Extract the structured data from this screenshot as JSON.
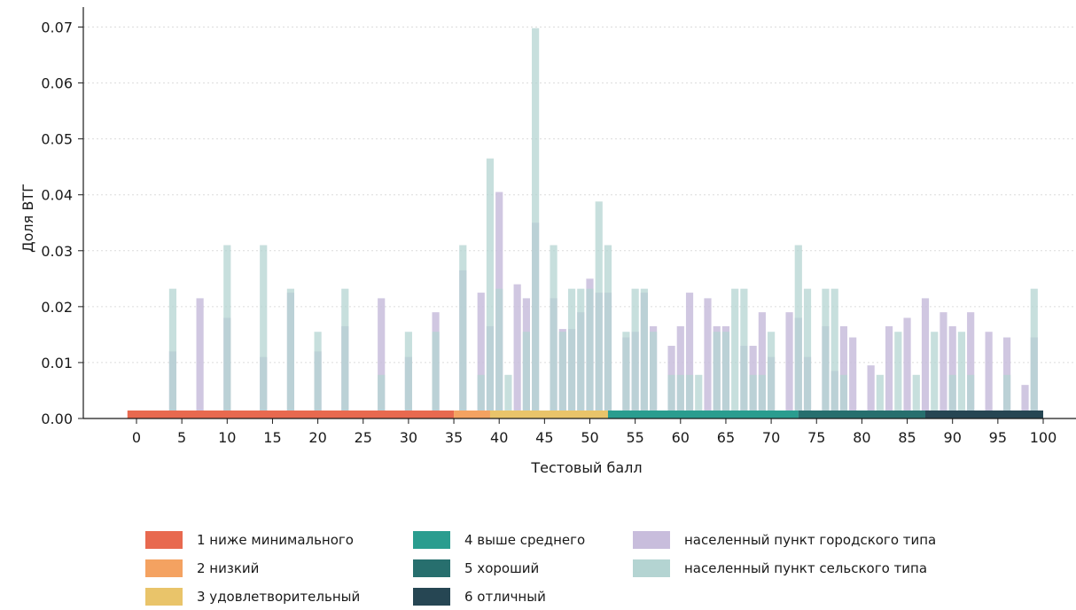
{
  "chart_data": {
    "type": "bar",
    "title": "",
    "xlabel": "Тестовый балл",
    "ylabel": "Доля ВТГ",
    "xlim": [
      -1,
      100
    ],
    "ylim": [
      0,
      0.072
    ],
    "xticks": [
      "0",
      "5",
      "10",
      "15",
      "20",
      "25",
      "30",
      "35",
      "40",
      "45",
      "50",
      "55",
      "60",
      "65",
      "70",
      "75",
      "80",
      "85",
      "90",
      "95",
      "100"
    ],
    "yticks": [
      "0.00",
      "0.01",
      "0.02",
      "0.03",
      "0.04",
      "0.05",
      "0.06",
      "0.07"
    ],
    "grid": "horizontal dotted",
    "level_band": [
      {
        "label": "1 ниже минимального",
        "from": -1,
        "to": 35,
        "color": "#E8694F"
      },
      {
        "label": "2 низкий",
        "from": 35,
        "to": 39,
        "color": "#F4A261"
      },
      {
        "label": "3 удовлетворительный",
        "from": 39,
        "to": 52,
        "color": "#E9C46A"
      },
      {
        "label": "4 выше среднего",
        "from": 52,
        "to": 73,
        "color": "#2A9D8F"
      },
      {
        "label": "5 хороший",
        "from": 73,
        "to": 87,
        "color": "#276F6E"
      },
      {
        "label": "6 отличный",
        "from": 87,
        "to": 100,
        "color": "#264653"
      }
    ],
    "series": [
      {
        "name": "населенный пункт городского типа",
        "color": "#C8BDDC",
        "points": [
          [
            4,
            0.012
          ],
          [
            7,
            0.0215
          ],
          [
            10,
            0.018
          ],
          [
            14,
            0.011
          ],
          [
            17,
            0.0225
          ],
          [
            20,
            0.012
          ],
          [
            23,
            0.0165
          ],
          [
            27,
            0.0215
          ],
          [
            30,
            0.011
          ],
          [
            33,
            0.019
          ],
          [
            36,
            0.0265
          ],
          [
            38,
            0.0225
          ],
          [
            39,
            0.0165
          ],
          [
            40,
            0.0405
          ],
          [
            42,
            0.024
          ],
          [
            43,
            0.0215
          ],
          [
            44,
            0.035
          ],
          [
            46,
            0.0215
          ],
          [
            47,
            0.016
          ],
          [
            48,
            0.016
          ],
          [
            49,
            0.019
          ],
          [
            50,
            0.025
          ],
          [
            51,
            0.0225
          ],
          [
            52,
            0.0225
          ],
          [
            54,
            0.0145
          ],
          [
            55,
            0.0155
          ],
          [
            56,
            0.0225
          ],
          [
            57,
            0.0165
          ],
          [
            59,
            0.013
          ],
          [
            60,
            0.0165
          ],
          [
            61,
            0.0225
          ],
          [
            63,
            0.0215
          ],
          [
            64,
            0.0165
          ],
          [
            65,
            0.0165
          ],
          [
            67,
            0.013
          ],
          [
            68,
            0.013
          ],
          [
            69,
            0.019
          ],
          [
            70,
            0.011
          ],
          [
            72,
            0.019
          ],
          [
            73,
            0.018
          ],
          [
            74,
            0.011
          ],
          [
            76,
            0.0165
          ],
          [
            77,
            0.0085
          ],
          [
            78,
            0.0165
          ],
          [
            79,
            0.0145
          ],
          [
            81,
            0.0095
          ],
          [
            83,
            0.0165
          ],
          [
            85,
            0.018
          ],
          [
            87,
            0.0215
          ],
          [
            89,
            0.019
          ],
          [
            90,
            0.0165
          ],
          [
            92,
            0.019
          ],
          [
            94,
            0.0155
          ],
          [
            96,
            0.0145
          ],
          [
            98,
            0.006
          ],
          [
            99,
            0.0145
          ]
        ]
      },
      {
        "name": "населенный пункт сельского типа",
        "color": "#B4D4D2",
        "points": [
          [
            4,
            0.0232
          ],
          [
            10,
            0.031
          ],
          [
            14,
            0.031
          ],
          [
            17,
            0.0232
          ],
          [
            20,
            0.0155
          ],
          [
            23,
            0.0232
          ],
          [
            27,
            0.0078
          ],
          [
            30,
            0.0155
          ],
          [
            33,
            0.0155
          ],
          [
            36,
            0.031
          ],
          [
            38,
            0.0078
          ],
          [
            39,
            0.0465
          ],
          [
            40,
            0.0232
          ],
          [
            41,
            0.0078
          ],
          [
            43,
            0.0155
          ],
          [
            44,
            0.0698
          ],
          [
            46,
            0.031
          ],
          [
            47,
            0.0155
          ],
          [
            48,
            0.0232
          ],
          [
            49,
            0.0232
          ],
          [
            50,
            0.0232
          ],
          [
            51,
            0.0388
          ],
          [
            52,
            0.031
          ],
          [
            54,
            0.0155
          ],
          [
            55,
            0.0232
          ],
          [
            56,
            0.0232
          ],
          [
            57,
            0.0155
          ],
          [
            59,
            0.0078
          ],
          [
            60,
            0.0078
          ],
          [
            61,
            0.0078
          ],
          [
            62,
            0.0078
          ],
          [
            64,
            0.0155
          ],
          [
            65,
            0.0155
          ],
          [
            66,
            0.0232
          ],
          [
            67,
            0.0232
          ],
          [
            68,
            0.0078
          ],
          [
            69,
            0.0078
          ],
          [
            70,
            0.0155
          ],
          [
            73,
            0.031
          ],
          [
            74,
            0.0232
          ],
          [
            76,
            0.0232
          ],
          [
            77,
            0.0232
          ],
          [
            78,
            0.0078
          ],
          [
            82,
            0.0078
          ],
          [
            84,
            0.0155
          ],
          [
            86,
            0.0078
          ],
          [
            88,
            0.0155
          ],
          [
            90,
            0.0078
          ],
          [
            91,
            0.0155
          ],
          [
            92,
            0.0078
          ],
          [
            96,
            0.0078
          ],
          [
            99,
            0.0232
          ]
        ]
      }
    ]
  },
  "legend": {
    "items": [
      {
        "label": "1 ниже минимального",
        "color": "#E8694F"
      },
      {
        "label": "2 низкий",
        "color": "#F4A261"
      },
      {
        "label": "3 удовлетворительный",
        "color": "#E9C46A"
      },
      {
        "label": "4 выше среднего",
        "color": "#2A9D8F"
      },
      {
        "label": "5 хороший",
        "color": "#276F6E"
      },
      {
        "label": "6 отличный",
        "color": "#264653"
      },
      {
        "label": "населенный пункт городского типа",
        "color": "#C8BDDC"
      },
      {
        "label": "населенный пункт сельского типа",
        "color": "#B4D4D2"
      }
    ]
  }
}
